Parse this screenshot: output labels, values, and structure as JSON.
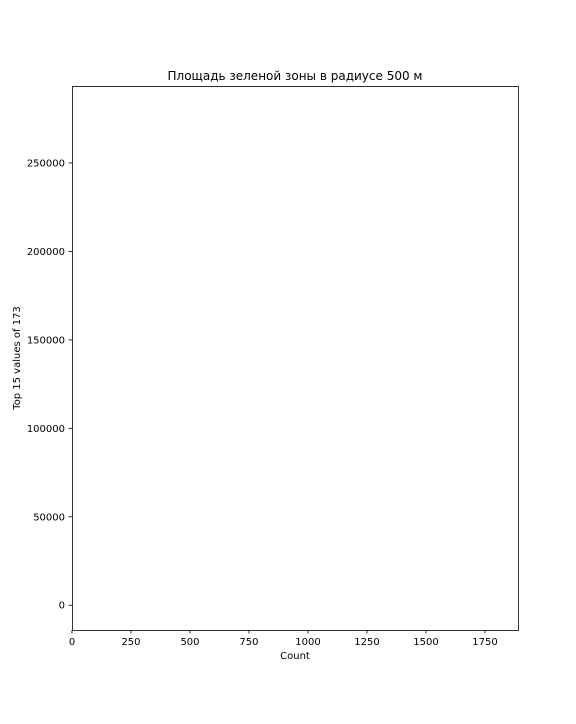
{
  "chart_data": {
    "type": "bar",
    "orientation": "horizontal",
    "title": "Площадь зеленой зоны в радиусе 500 м",
    "xlabel": "Count",
    "ylabel": "Top 15 values of 173",
    "xlim": [
      0,
      1890
    ],
    "ylim": [
      -14000,
      293500
    ],
    "xticks": [
      0,
      250,
      500,
      750,
      1000,
      1250,
      1500,
      1750
    ],
    "xtick_labels": [
      "0",
      "250",
      "500",
      "750",
      "1000",
      "1250",
      "1500",
      "1750"
    ],
    "yticks": [
      0,
      50000,
      100000,
      150000,
      200000,
      250000
    ],
    "ytick_labels": [
      "0",
      "50000",
      "100000",
      "150000",
      "200000",
      "250000"
    ],
    "grid": false,
    "legend": "none",
    "categories": [],
    "values": []
  }
}
